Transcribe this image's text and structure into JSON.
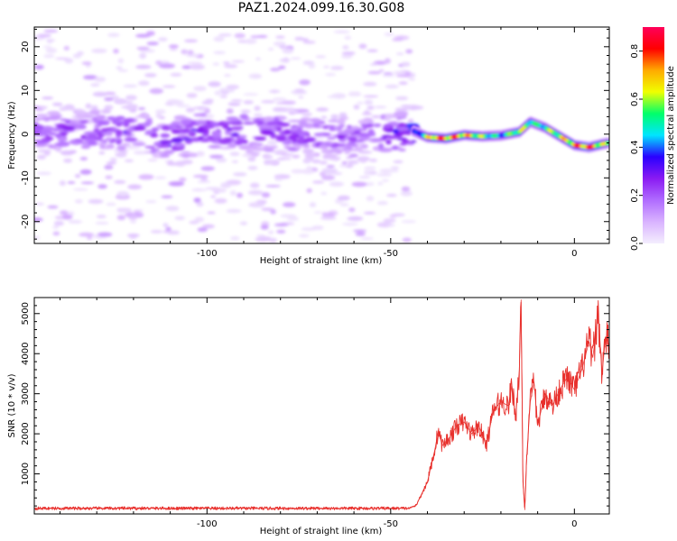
{
  "figure": {
    "title": "PAZ1.2024.099.16.30.G08"
  },
  "chart_data": [
    {
      "type": "heatmap",
      "xlabel": "Height of straight line (km)",
      "ylabel": "Frequency (Hz)",
      "xlim": [
        -147,
        9.5
      ],
      "ylim": [
        -25,
        24.5
      ],
      "x_ticks": [
        "-100",
        "-50",
        "0"
      ],
      "y_ticks": [
        "20",
        "10",
        "0",
        "-10",
        "-20"
      ],
      "colorbar": {
        "label": "Normalized spectral amplitude",
        "range": [
          0,
          0.9
        ],
        "ticks": [
          "0.0",
          "0.2",
          "0.4",
          "0.6",
          "0.8"
        ],
        "colors": [
          "#f4eefe",
          "#d9b3ff",
          "#b06cff",
          "#8a1bf2",
          "#2a00ff",
          "#00e5ff",
          "#00ff6a",
          "#f0ff00",
          "#ffaa00",
          "#ff0000",
          "#ff005a"
        ]
      },
      "ridge_center": [
        [
          -147,
          0.3
        ],
        [
          -130,
          0.8
        ],
        [
          -120,
          0.5
        ],
        [
          -110,
          -1.5
        ],
        [
          -100,
          1.0
        ],
        [
          -90,
          0.6
        ],
        [
          -80,
          0.2
        ],
        [
          -70,
          -0.6
        ],
        [
          -60,
          -0.4
        ],
        [
          -50,
          0.2
        ],
        [
          -44,
          0.8
        ],
        [
          -40,
          -0.7
        ],
        [
          -35,
          -1.0
        ],
        [
          -30,
          -0.2
        ],
        [
          -25,
          -0.5
        ],
        [
          -20,
          -0.3
        ],
        [
          -15,
          0.5
        ],
        [
          -12,
          2.8
        ],
        [
          -8,
          1.5
        ],
        [
          -4,
          -0.5
        ],
        [
          0,
          -2.5
        ],
        [
          4,
          -3.0
        ],
        [
          8,
          -2.2
        ],
        [
          9.5,
          -2.0
        ]
      ],
      "ridge_peak_amplitude": [
        [
          -147,
          0.2
        ],
        [
          -120,
          0.25
        ],
        [
          -110,
          0.28
        ],
        [
          -60,
          0.2
        ],
        [
          -45,
          0.3
        ],
        [
          -43,
          0.4
        ],
        [
          -38,
          0.85
        ],
        [
          -30,
          0.8
        ],
        [
          -20,
          0.5
        ],
        [
          -15,
          0.7
        ],
        [
          -10,
          0.55
        ],
        [
          0,
          0.8
        ],
        [
          4,
          0.9
        ],
        [
          9.5,
          0.6
        ]
      ],
      "noise_extent_x": [
        -147,
        -44
      ]
    },
    {
      "type": "line",
      "xlabel": "Height of straight line (km)",
      "ylabel": "SNR (10 * v/v)",
      "xlim": [
        -147,
        9.5
      ],
      "ylim": [
        0,
        5400
      ],
      "x_ticks": [
        "-100",
        "-50",
        "0"
      ],
      "y_ticks": [
        "1000",
        "2000",
        "3000",
        "4000",
        "5000"
      ],
      "series": [
        {
          "color": "#e8302c",
          "points": [
            [
              -147,
              140
            ],
            [
              -45,
              140
            ],
            [
              -43,
              220
            ],
            [
              -42,
              420
            ],
            [
              -40,
              800
            ],
            [
              -38,
              1600
            ],
            [
              -37,
              2100
            ],
            [
              -36,
              1700
            ],
            [
              -34,
              1900
            ],
            [
              -32,
              2200
            ],
            [
              -30,
              2300
            ],
            [
              -28,
              2000
            ],
            [
              -26,
              2200
            ],
            [
              -24,
              1700
            ],
            [
              -22,
              2600
            ],
            [
              -20,
              2800
            ],
            [
              -18,
              2700
            ],
            [
              -17,
              3200
            ],
            [
              -16,
              2400
            ],
            [
              -15,
              3600
            ],
            [
              -14.5,
              5350
            ],
            [
              -14,
              800
            ],
            [
              -13.5,
              100
            ],
            [
              -13,
              1400
            ],
            [
              -12,
              2800
            ],
            [
              -11,
              3300
            ],
            [
              -10,
              2200
            ],
            [
              -9,
              2600
            ],
            [
              -8,
              3000
            ],
            [
              -6,
              2700
            ],
            [
              -4,
              3100
            ],
            [
              -2,
              3400
            ],
            [
              0,
              3100
            ],
            [
              2,
              3600
            ],
            [
              4,
              4300
            ],
            [
              5,
              3900
            ],
            [
              6.5,
              5000
            ],
            [
              7.5,
              3500
            ],
            [
              8.5,
              4400
            ],
            [
              9.5,
              4200
            ]
          ]
        }
      ]
    }
  ]
}
